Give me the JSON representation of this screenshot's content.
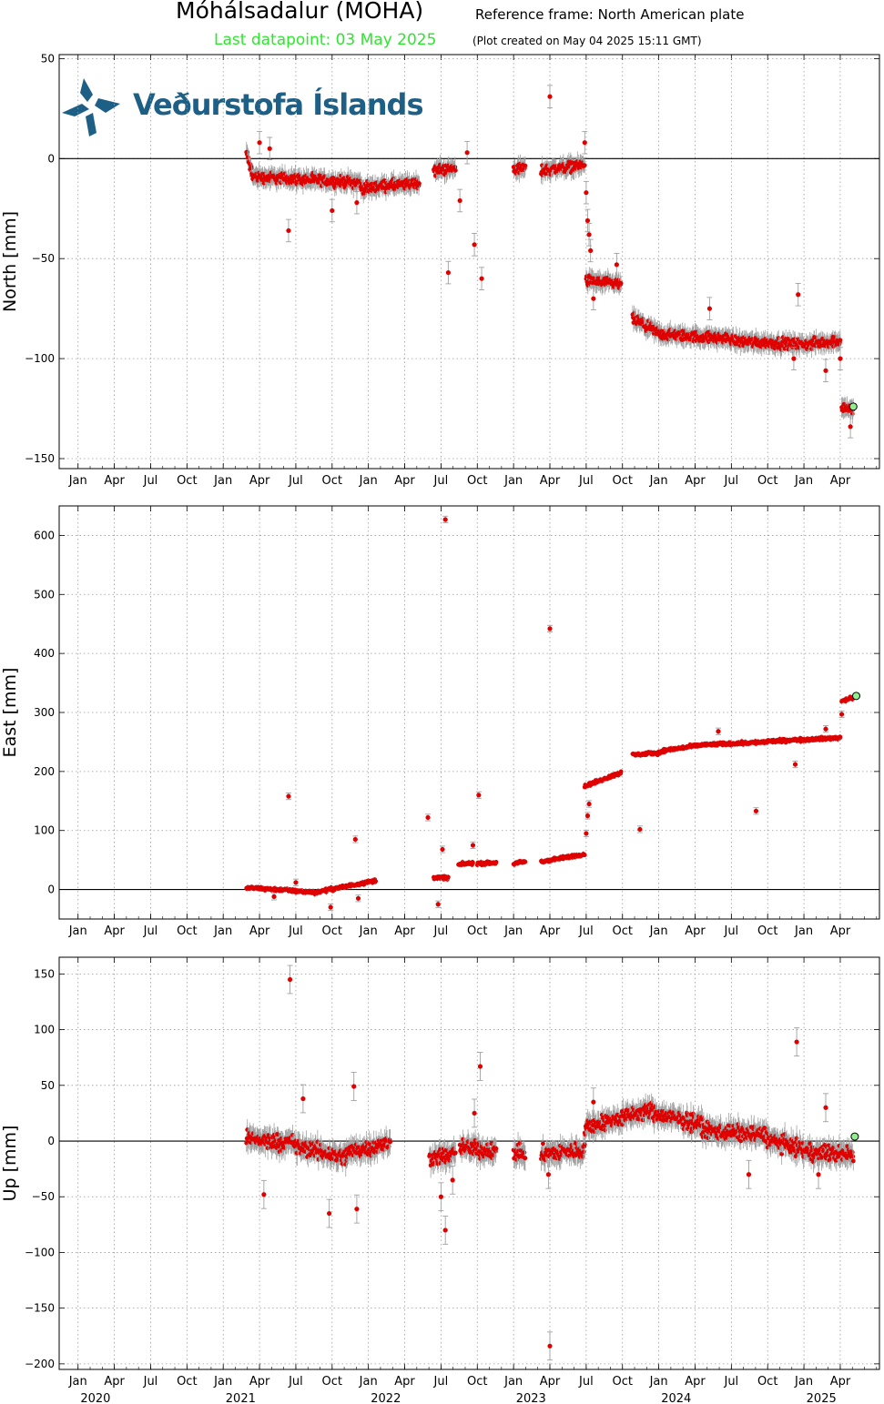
{
  "header": {
    "title": "Móhálsadalur (MOHA)",
    "reference_frame": "Reference frame: North American plate",
    "last_datapoint": "Last datapoint: 03 May 2025",
    "plot_created": "(Plot created on May 04 2025 15:11 GMT)"
  },
  "logo": {
    "text": "Veðurstofa Íslands"
  },
  "colors": {
    "data": "#e00000",
    "errorbar": "#a0a0a0",
    "last_point": "#90ee90",
    "last_datapoint_text": "#2ee62e",
    "logo": "#1e5f86"
  },
  "chart_data": [
    {
      "type": "scatter",
      "ylabel": "North [mm]",
      "ylim": [
        -155,
        52
      ],
      "yticks": [
        50,
        0,
        -50,
        -100,
        -150
      ],
      "month_ticks": [
        "Jan",
        "Apr",
        "Jul",
        "Oct",
        "Jan",
        "Apr",
        "Jul",
        "Oct",
        "Jan",
        "Apr",
        "Jul",
        "Oct",
        "Jan",
        "Apr",
        "Jul",
        "Oct",
        "Jan",
        "Apr",
        "Jul",
        "Oct",
        "Jan",
        "Apr"
      ],
      "zero_line": true,
      "grid": true,
      "segments": [
        {
          "t0": 2021.16,
          "t1": 2021.2,
          "y0": 3,
          "y1": -8
        },
        {
          "t0": 2021.2,
          "t1": 2021.95,
          "y0": -9,
          "y1": -12
        },
        {
          "t0": 2021.95,
          "t1": 2022.18,
          "y0": -15,
          "y1": -13
        },
        {
          "t0": 2022.17,
          "t1": 2022.35,
          "y0": -14,
          "y1": -12
        },
        {
          "t0": 2022.45,
          "t1": 2022.6,
          "y0": -6,
          "y1": -5
        },
        {
          "t0": 2023.0,
          "t1": 2023.08,
          "y0": -5,
          "y1": -5
        },
        {
          "t0": 2023.19,
          "t1": 2023.49,
          "y0": -6,
          "y1": -3
        },
        {
          "t0": 2023.5,
          "t1": 2023.74,
          "y0": -61,
          "y1": -63
        },
        {
          "t0": 2023.82,
          "t1": 2024.02,
          "y0": -80,
          "y1": -88
        },
        {
          "t0": 2024.02,
          "t1": 2024.5,
          "y0": -88,
          "y1": -90
        },
        {
          "t0": 2024.5,
          "t1": 2025.0,
          "y0": -91,
          "y1": -93
        },
        {
          "t0": 2025.0,
          "t1": 2025.25,
          "y0": -93,
          "y1": -91
        },
        {
          "t0": 2025.26,
          "t1": 2025.34,
          "y0": -124,
          "y1": -126
        }
      ],
      "outliers": [
        {
          "t": 2021.25,
          "y": 8
        },
        {
          "t": 2021.32,
          "y": 5
        },
        {
          "t": 2021.45,
          "y": -36
        },
        {
          "t": 2021.75,
          "y": -26
        },
        {
          "t": 2021.92,
          "y": -22
        },
        {
          "t": 2022.55,
          "y": -57
        },
        {
          "t": 2022.73,
          "y": -43
        },
        {
          "t": 2022.78,
          "y": -60
        },
        {
          "t": 2022.68,
          "y": 3
        },
        {
          "t": 2022.63,
          "y": -21
        },
        {
          "t": 2023.25,
          "y": 31
        },
        {
          "t": 2023.49,
          "y": 8
        },
        {
          "t": 2023.5,
          "y": -17
        },
        {
          "t": 2023.51,
          "y": -31
        },
        {
          "t": 2023.52,
          "y": -38
        },
        {
          "t": 2023.53,
          "y": -46
        },
        {
          "t": 2023.55,
          "y": -70
        },
        {
          "t": 2023.71,
          "y": -53
        },
        {
          "t": 2024.35,
          "y": -75
        },
        {
          "t": 2024.96,
          "y": -68
        },
        {
          "t": 2024.93,
          "y": -100
        },
        {
          "t": 2025.15,
          "y": -106
        },
        {
          "t": 2025.25,
          "y": -100
        },
        {
          "t": 2025.32,
          "y": -134
        }
      ],
      "last_point": {
        "t": 2025.34,
        "y": -124
      }
    },
    {
      "type": "scatter",
      "ylabel": "East [mm]",
      "ylim": [
        -50,
        650
      ],
      "yticks": [
        600,
        500,
        400,
        300,
        200,
        100,
        0
      ],
      "month_ticks": [
        "Jan",
        "Apr",
        "Jul",
        "Oct",
        "Jan",
        "Apr",
        "Jul",
        "Oct",
        "Jan",
        "Apr",
        "Jul",
        "Oct",
        "Jan",
        "Apr",
        "Jul",
        "Oct",
        "Jan",
        "Apr",
        "Jul",
        "Oct",
        "Jan",
        "Apr"
      ],
      "zero_line": true,
      "grid": true,
      "segments": [
        {
          "t0": 2021.16,
          "t1": 2021.45,
          "y0": 3,
          "y1": -1
        },
        {
          "t0": 2021.45,
          "t1": 2021.65,
          "y0": -2,
          "y1": -5
        },
        {
          "t0": 2021.65,
          "t1": 2022.05,
          "y0": -4,
          "y1": 15
        },
        {
          "t0": 2022.45,
          "t1": 2022.55,
          "y0": 20,
          "y1": 20
        },
        {
          "t0": 2022.62,
          "t1": 2022.72,
          "y0": 42,
          "y1": 45
        },
        {
          "t0": 2022.75,
          "t1": 2022.88,
          "y0": 44,
          "y1": 45
        },
        {
          "t0": 2023.0,
          "t1": 2023.08,
          "y0": 44,
          "y1": 47
        },
        {
          "t0": 2023.19,
          "t1": 2023.49,
          "y0": 47,
          "y1": 60
        },
        {
          "t0": 2023.49,
          "t1": 2023.74,
          "y0": 175,
          "y1": 198
        },
        {
          "t0": 2023.82,
          "t1": 2024.02,
          "y0": 228,
          "y1": 232
        },
        {
          "t0": 2024.02,
          "t1": 2024.3,
          "y0": 235,
          "y1": 245
        },
        {
          "t0": 2024.3,
          "t1": 2024.75,
          "y0": 245,
          "y1": 250
        },
        {
          "t0": 2024.75,
          "t1": 2025.25,
          "y0": 251,
          "y1": 257
        },
        {
          "t0": 2025.26,
          "t1": 2025.34,
          "y0": 320,
          "y1": 325
        }
      ],
      "outliers": [
        {
          "t": 2021.45,
          "y": 158
        },
        {
          "t": 2021.5,
          "y": 12
        },
        {
          "t": 2021.35,
          "y": -12
        },
        {
          "t": 2021.74,
          "y": -30
        },
        {
          "t": 2021.91,
          "y": 85
        },
        {
          "t": 2021.93,
          "y": -15
        },
        {
          "t": 2022.41,
          "y": 122
        },
        {
          "t": 2022.48,
          "y": -25
        },
        {
          "t": 2022.51,
          "y": 68
        },
        {
          "t": 2022.53,
          "y": 627
        },
        {
          "t": 2022.72,
          "y": 75
        },
        {
          "t": 2022.76,
          "y": 160
        },
        {
          "t": 2023.25,
          "y": 442
        },
        {
          "t": 2023.5,
          "y": 95
        },
        {
          "t": 2023.51,
          "y": 125
        },
        {
          "t": 2023.52,
          "y": 145
        },
        {
          "t": 2023.87,
          "y": 102
        },
        {
          "t": 2024.41,
          "y": 268
        },
        {
          "t": 2024.67,
          "y": 133
        },
        {
          "t": 2024.94,
          "y": 212
        },
        {
          "t": 2025.15,
          "y": 272
        },
        {
          "t": 2025.26,
          "y": 297
        }
      ],
      "last_point": {
        "t": 2025.36,
        "y": 328
      }
    },
    {
      "type": "scatter",
      "ylabel": "Up [mm]",
      "ylim": [
        -205,
        165
      ],
      "yticks": [
        150,
        100,
        50,
        0,
        -50,
        -100,
        -150,
        -200
      ],
      "month_ticks": [
        "Jan",
        "Apr",
        "Jul",
        "Oct",
        "Jan",
        "Apr",
        "Jul",
        "Oct",
        "Jan",
        "Apr",
        "Jul",
        "Oct",
        "Jan",
        "Apr",
        "Jul",
        "Oct",
        "Jan",
        "Apr",
        "Jul",
        "Oct",
        "Jan",
        "Apr"
      ],
      "year_labels": [
        "2020",
        "2021",
        "2022",
        "2023",
        "2024",
        "2025"
      ],
      "zero_line": true,
      "grid": true,
      "segments": [
        {
          "t0": 2021.16,
          "t1": 2021.5,
          "y0": 2,
          "y1": -2
        },
        {
          "t0": 2021.5,
          "t1": 2021.85,
          "y0": -5,
          "y1": -15
        },
        {
          "t0": 2021.85,
          "t1": 2022.15,
          "y0": -10,
          "y1": -2
        },
        {
          "t0": 2022.42,
          "t1": 2022.6,
          "y0": -15,
          "y1": -12
        },
        {
          "t0": 2022.63,
          "t1": 2022.88,
          "y0": -5,
          "y1": -10
        },
        {
          "t0": 2023.0,
          "t1": 2023.08,
          "y0": -10,
          "y1": -12
        },
        {
          "t0": 2023.19,
          "t1": 2023.49,
          "y0": -12,
          "y1": -8
        },
        {
          "t0": 2023.49,
          "t1": 2023.95,
          "y0": 12,
          "y1": 28
        },
        {
          "t0": 2023.95,
          "t1": 2024.3,
          "y0": 25,
          "y1": 15
        },
        {
          "t0": 2024.3,
          "t1": 2024.75,
          "y0": 10,
          "y1": 5
        },
        {
          "t0": 2024.75,
          "t1": 2025.0,
          "y0": 2,
          "y1": -8
        },
        {
          "t0": 2025.0,
          "t1": 2025.34,
          "y0": -10,
          "y1": -12
        }
      ],
      "outliers": [
        {
          "t": 2021.46,
          "y": 145
        },
        {
          "t": 2021.55,
          "y": 38
        },
        {
          "t": 2021.28,
          "y": -48
        },
        {
          "t": 2021.73,
          "y": -65
        },
        {
          "t": 2021.9,
          "y": 49
        },
        {
          "t": 2021.92,
          "y": -61
        },
        {
          "t": 2022.53,
          "y": -80
        },
        {
          "t": 2022.5,
          "y": -50
        },
        {
          "t": 2022.58,
          "y": -35
        },
        {
          "t": 2022.73,
          "y": 25
        },
        {
          "t": 2022.77,
          "y": 67
        },
        {
          "t": 2023.25,
          "y": -184
        },
        {
          "t": 2023.24,
          "y": -30
        },
        {
          "t": 2023.55,
          "y": 35
        },
        {
          "t": 2024.95,
          "y": 89
        },
        {
          "t": 2024.62,
          "y": -30
        },
        {
          "t": 2025.15,
          "y": 30
        },
        {
          "t": 2025.1,
          "y": -30
        }
      ],
      "last_point": {
        "t": 2025.35,
        "y": 4
      }
    }
  ]
}
